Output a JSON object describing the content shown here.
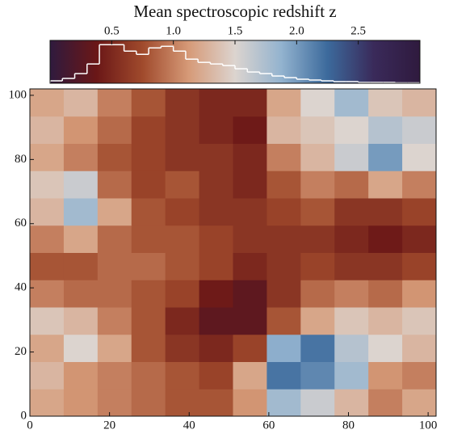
{
  "chart_data": {
    "type": "hexbin",
    "title": "Mean spectroscopic redshift z",
    "colorbar": {
      "clim": [
        0,
        3
      ],
      "ticks": [
        0.5,
        {
          "value": 1,
          "label": "1.0"
        },
        1.5,
        {
          "value": 2,
          "label": "2.0"
        },
        2.5
      ],
      "colormap": [
        "#2f1a3e",
        "#6a1717",
        "#a04a2c",
        "#d69a78",
        "#dcd4cf",
        "#93b3cf",
        "#3c6a9c",
        "#3a2a5a",
        "#2f1a3e"
      ],
      "hist_bins": [
        0,
        0.1,
        0.2,
        0.3,
        0.4,
        0.5,
        0.6,
        0.7,
        0.8,
        0.9,
        1.0,
        1.1,
        1.2,
        1.3,
        1.4,
        1.5,
        1.6,
        1.7,
        1.8,
        1.9,
        2.0,
        2.1,
        2.2,
        2.3,
        2.4,
        2.5,
        2.6,
        2.7,
        2.8,
        2.9,
        3.0
      ],
      "hist_counts": [
        3,
        6,
        12,
        24,
        48,
        48,
        40,
        36,
        44,
        46,
        40,
        30,
        26,
        24,
        22,
        18,
        14,
        12,
        9,
        7,
        5,
        4,
        3,
        2,
        2,
        1,
        1,
        1,
        0.5,
        0.5
      ],
      "hist_color": "#ffffff"
    },
    "xlim": [
      0,
      102
    ],
    "ylim": [
      0,
      102
    ],
    "xticks": [
      0,
      20,
      40,
      60,
      80,
      100
    ],
    "yticks": [
      0,
      20,
      40,
      60,
      80,
      100
    ],
    "x": [
      4.25,
      12.75,
      21.25,
      29.75,
      38.25,
      46.75,
      55.25,
      63.75,
      72.25,
      80.75,
      89.25,
      97.75
    ],
    "y": [
      4.25,
      12.75,
      21.25,
      29.75,
      38.25,
      46.75,
      55.25,
      63.75,
      72.25,
      80.75,
      89.25,
      97.75
    ],
    "z": [
      [
        1.2,
        1.1,
        1.0,
        0.9,
        0.8,
        0.8,
        1.1,
        1.8,
        1.6,
        1.3,
        1.0,
        1.2
      ],
      [
        1.3,
        1.1,
        1.0,
        0.9,
        0.8,
        0.7,
        1.2,
        2.2,
        2.1,
        1.8,
        1.1,
        1.0
      ],
      [
        1.2,
        1.5,
        1.2,
        0.8,
        0.6,
        0.5,
        0.7,
        1.9,
        2.2,
        1.7,
        1.5,
        1.3
      ],
      [
        1.4,
        1.3,
        1.0,
        0.8,
        0.5,
        0.3,
        0.3,
        0.8,
        1.2,
        1.4,
        1.3,
        1.4
      ],
      [
        1.0,
        0.9,
        0.9,
        0.8,
        0.7,
        0.4,
        0.3,
        0.6,
        0.9,
        1.0,
        0.9,
        1.1
      ],
      [
        0.8,
        0.8,
        0.9,
        0.9,
        0.8,
        0.7,
        0.5,
        0.6,
        0.7,
        0.6,
        0.6,
        0.7
      ],
      [
        1.0,
        1.2,
        0.9,
        0.8,
        0.8,
        0.7,
        0.6,
        0.6,
        0.6,
        0.5,
        0.4,
        0.5
      ],
      [
        1.3,
        1.8,
        1.2,
        0.8,
        0.7,
        0.6,
        0.6,
        0.7,
        0.8,
        0.6,
        0.6,
        0.7
      ],
      [
        1.4,
        1.6,
        0.9,
        0.7,
        0.8,
        0.6,
        0.5,
        0.8,
        1.0,
        0.9,
        1.2,
        1.0
      ],
      [
        1.2,
        1.0,
        0.8,
        0.7,
        0.6,
        0.6,
        0.5,
        1.0,
        1.3,
        1.6,
        2.0,
        1.5
      ],
      [
        1.3,
        1.1,
        0.9,
        0.7,
        0.6,
        0.5,
        0.4,
        1.3,
        1.4,
        1.5,
        1.7,
        1.6
      ],
      [
        1.2,
        1.3,
        1.0,
        0.8,
        0.6,
        0.5,
        0.5,
        1.2,
        1.5,
        1.8,
        1.4,
        1.3
      ]
    ]
  }
}
